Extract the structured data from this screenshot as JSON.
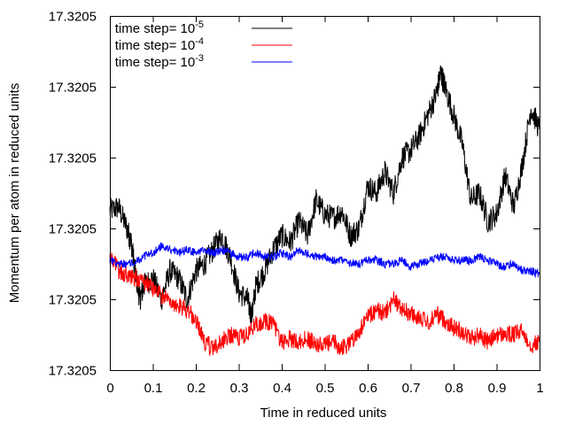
{
  "chart_data": {
    "type": "line",
    "title": "",
    "xlabel": "Time in reduced units",
    "ylabel": "Momentum per atom in reduced units",
    "xlim": [
      0,
      1
    ],
    "ylim": [
      0,
      1
    ],
    "x_ticks": [
      "0",
      "0.1",
      "0.2",
      "0.3",
      "0.4",
      "0.5",
      "0.6",
      "0.7",
      "0.8",
      "0.9",
      "1"
    ],
    "y_ticks": [
      "17.3205",
      "17.3205",
      "17.3205",
      "17.3205",
      "17.3205",
      "17.3205"
    ],
    "y_scale_note": "",
    "grid": false,
    "legend_position": "top-left",
    "series": [
      {
        "name": "time step= 10^-5",
        "legend_base": "time step= 10",
        "legend_exp": "-5",
        "color": "#000000",
        "x": [
          0,
          0.02,
          0.04,
          0.05,
          0.06,
          0.07,
          0.08,
          0.1,
          0.12,
          0.14,
          0.16,
          0.18,
          0.2,
          0.22,
          0.24,
          0.26,
          0.28,
          0.3,
          0.32,
          0.33,
          0.34,
          0.36,
          0.38,
          0.4,
          0.42,
          0.44,
          0.46,
          0.48,
          0.5,
          0.52,
          0.54,
          0.56,
          0.58,
          0.6,
          0.62,
          0.64,
          0.66,
          0.68,
          0.7,
          0.72,
          0.74,
          0.76,
          0.77,
          0.78,
          0.8,
          0.82,
          0.84,
          0.86,
          0.88,
          0.9,
          0.92,
          0.94,
          0.96,
          0.98,
          1.0
        ],
        "y": [
          0.45,
          0.46,
          0.4,
          0.36,
          0.27,
          0.2,
          0.24,
          0.26,
          0.2,
          0.28,
          0.26,
          0.2,
          0.28,
          0.3,
          0.34,
          0.38,
          0.32,
          0.22,
          0.2,
          0.15,
          0.24,
          0.28,
          0.34,
          0.38,
          0.36,
          0.42,
          0.38,
          0.48,
          0.44,
          0.43,
          0.45,
          0.38,
          0.4,
          0.52,
          0.5,
          0.56,
          0.5,
          0.6,
          0.62,
          0.66,
          0.72,
          0.78,
          0.84,
          0.8,
          0.72,
          0.64,
          0.48,
          0.5,
          0.42,
          0.44,
          0.55,
          0.46,
          0.58,
          0.74,
          0.68
        ]
      },
      {
        "name": "time step= 10^-4",
        "legend_base": "time step= 10",
        "legend_exp": "-4",
        "color": "#ff0000",
        "x": [
          0,
          0.02,
          0.04,
          0.06,
          0.08,
          0.1,
          0.12,
          0.14,
          0.16,
          0.18,
          0.2,
          0.22,
          0.24,
          0.26,
          0.28,
          0.3,
          0.32,
          0.34,
          0.36,
          0.38,
          0.4,
          0.42,
          0.44,
          0.46,
          0.48,
          0.5,
          0.52,
          0.54,
          0.56,
          0.58,
          0.6,
          0.62,
          0.64,
          0.66,
          0.68,
          0.7,
          0.72,
          0.74,
          0.76,
          0.78,
          0.8,
          0.82,
          0.84,
          0.86,
          0.88,
          0.9,
          0.92,
          0.94,
          0.96,
          0.98,
          1.0
        ],
        "y": [
          0.33,
          0.28,
          0.27,
          0.26,
          0.25,
          0.23,
          0.21,
          0.2,
          0.18,
          0.17,
          0.14,
          0.08,
          0.06,
          0.08,
          0.1,
          0.09,
          0.1,
          0.13,
          0.14,
          0.13,
          0.08,
          0.09,
          0.08,
          0.09,
          0.07,
          0.07,
          0.08,
          0.06,
          0.08,
          0.11,
          0.15,
          0.17,
          0.16,
          0.2,
          0.17,
          0.16,
          0.15,
          0.13,
          0.16,
          0.14,
          0.12,
          0.11,
          0.09,
          0.1,
          0.08,
          0.1,
          0.1,
          0.1,
          0.11,
          0.07,
          0.08
        ]
      },
      {
        "name": "time step= 10^-3",
        "legend_base": "time step= 10",
        "legend_exp": "-3",
        "color": "#0000ff",
        "x": [
          0,
          0.02,
          0.04,
          0.06,
          0.08,
          0.1,
          0.12,
          0.14,
          0.16,
          0.18,
          0.2,
          0.22,
          0.24,
          0.26,
          0.28,
          0.3,
          0.32,
          0.34,
          0.36,
          0.38,
          0.4,
          0.42,
          0.44,
          0.46,
          0.48,
          0.5,
          0.52,
          0.54,
          0.56,
          0.58,
          0.6,
          0.62,
          0.64,
          0.66,
          0.68,
          0.7,
          0.72,
          0.74,
          0.76,
          0.78,
          0.8,
          0.82,
          0.84,
          0.86,
          0.88,
          0.9,
          0.92,
          0.94,
          0.96,
          0.98,
          1.0
        ],
        "y": [
          0.31,
          0.3,
          0.3,
          0.31,
          0.32,
          0.33,
          0.35,
          0.34,
          0.33,
          0.34,
          0.33,
          0.34,
          0.33,
          0.34,
          0.33,
          0.32,
          0.32,
          0.33,
          0.32,
          0.32,
          0.33,
          0.32,
          0.34,
          0.33,
          0.32,
          0.32,
          0.31,
          0.31,
          0.3,
          0.3,
          0.31,
          0.31,
          0.3,
          0.3,
          0.31,
          0.29,
          0.3,
          0.31,
          0.32,
          0.32,
          0.31,
          0.31,
          0.31,
          0.32,
          0.31,
          0.3,
          0.29,
          0.3,
          0.28,
          0.28,
          0.27
        ]
      }
    ]
  }
}
